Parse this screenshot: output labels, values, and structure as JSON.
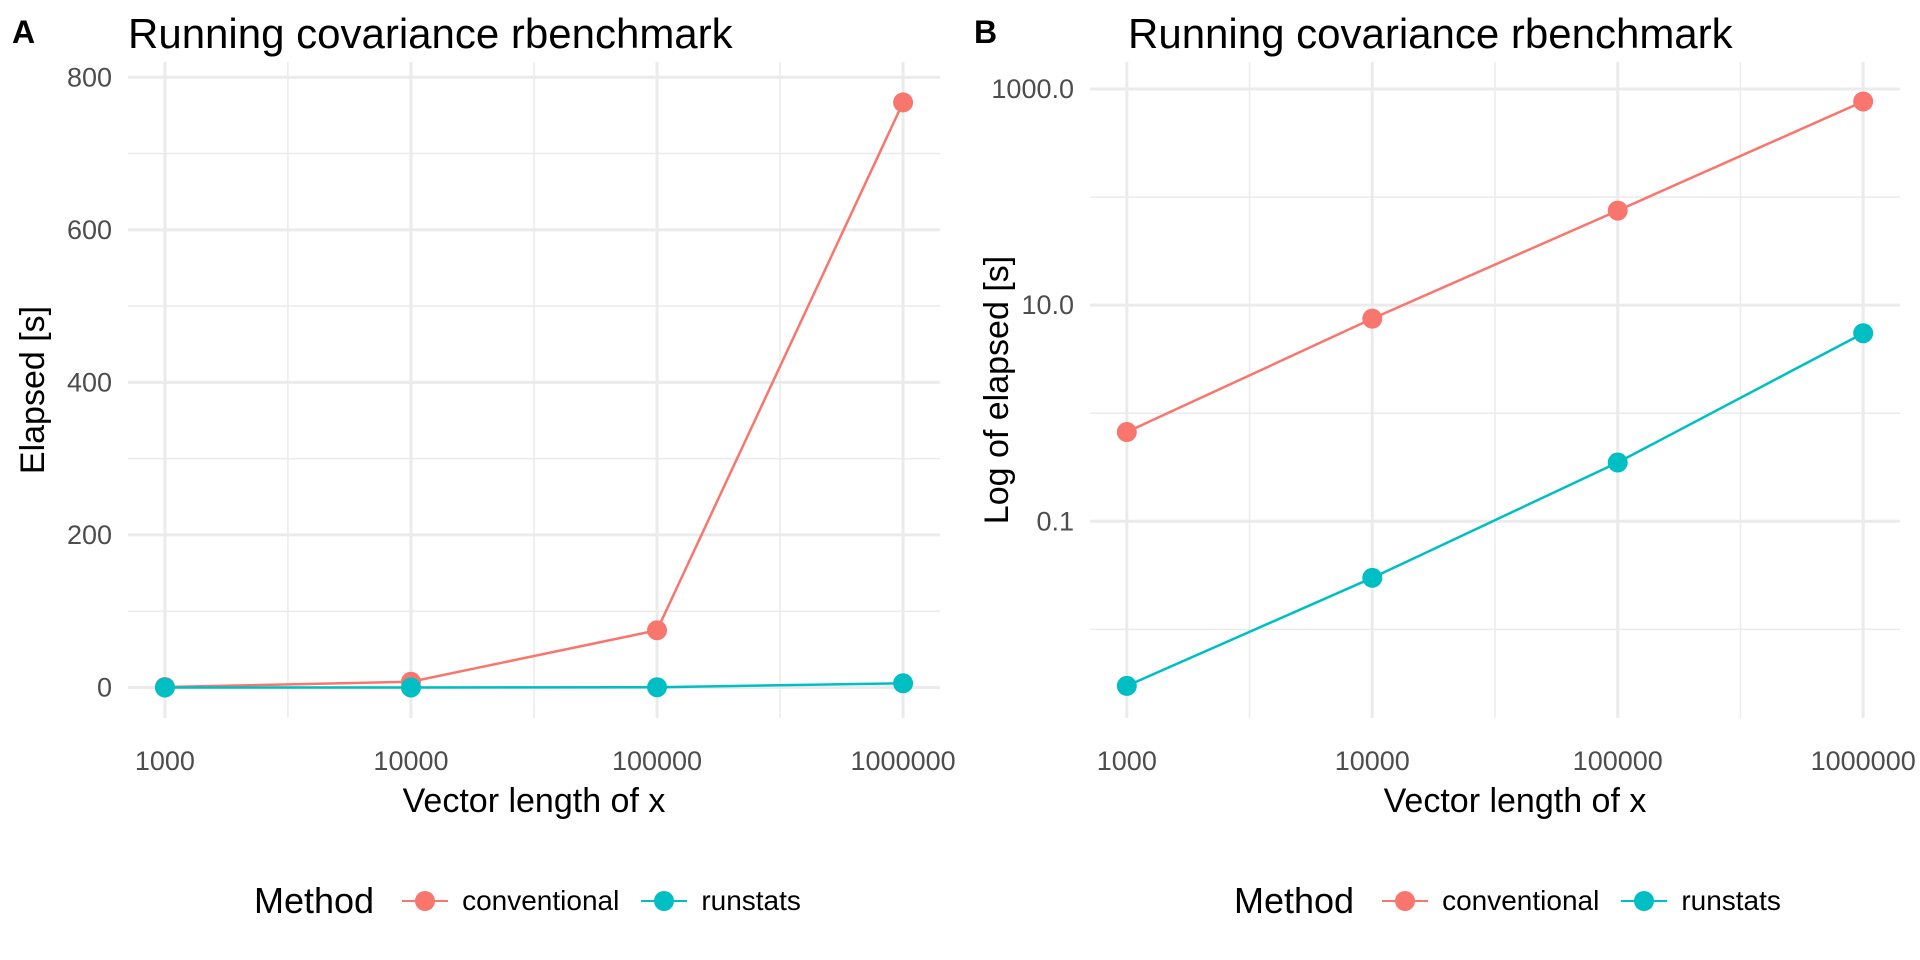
{
  "colors": {
    "conventional": "#F8766D",
    "runstats": "#00BFC4",
    "grid": "#EBEBEB",
    "text": "#4D4D4D"
  },
  "legend": {
    "title": "Method",
    "items": [
      {
        "label": "conventional",
        "color": "#F8766D"
      },
      {
        "label": "runstats",
        "color": "#00BFC4"
      }
    ]
  },
  "chart_data": [
    {
      "panel": "A",
      "type": "line",
      "title": "Running covariance rbenchmark",
      "xlabel": "Vector length of x",
      "ylabel": "Elapsed [s]",
      "x_scale": "log10",
      "y_scale": "linear",
      "x": [
        1000,
        10000,
        100000,
        1000000
      ],
      "x_tick_labels": [
        "1000",
        "10000",
        "100000",
        "1000000"
      ],
      "y_ticks": [
        0,
        200,
        400,
        600,
        800
      ],
      "y_tick_labels": [
        "0",
        "200",
        "400",
        "600",
        "800"
      ],
      "ylim": [
        0,
        800
      ],
      "grid": true,
      "legend_position": "bottom",
      "series": [
        {
          "name": "conventional",
          "color": "#F8766D",
          "values": [
            0.67,
            7.5,
            75,
            767
          ]
        },
        {
          "name": "runstats",
          "color": "#00BFC4",
          "values": [
            0.003,
            0.03,
            0.35,
            5.5
          ]
        }
      ]
    },
    {
      "panel": "B",
      "type": "line",
      "title": "Running covariance rbenchmark",
      "xlabel": "Vector length of x",
      "ylabel": "Log of elapsed [s]",
      "x_scale": "log10",
      "y_scale": "log10",
      "x": [
        1000,
        10000,
        100000,
        1000000
      ],
      "x_tick_labels": [
        "1000",
        "10000",
        "100000",
        "1000000"
      ],
      "y_ticks": [
        0.1,
        10,
        1000
      ],
      "y_tick_labels": [
        "0.1",
        "10.0",
        "1000.0"
      ],
      "grid": true,
      "legend_position": "bottom",
      "series": [
        {
          "name": "conventional",
          "color": "#F8766D",
          "values": [
            0.67,
            7.5,
            75,
            767
          ]
        },
        {
          "name": "runstats",
          "color": "#00BFC4",
          "values": [
            0.003,
            0.03,
            0.35,
            5.5
          ]
        }
      ]
    }
  ]
}
